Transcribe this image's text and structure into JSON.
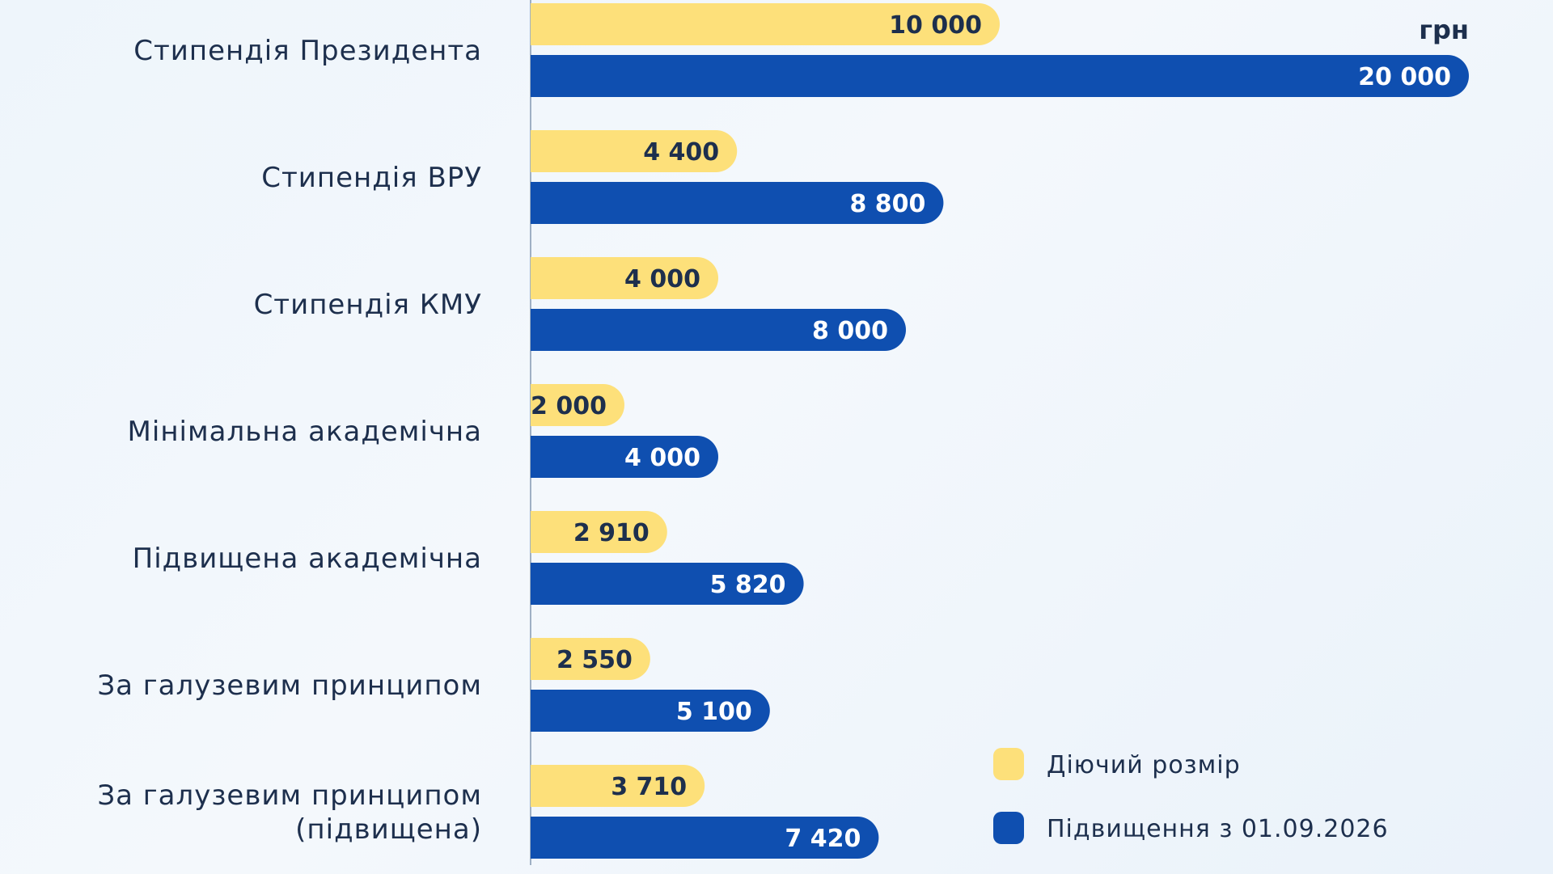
{
  "chart_data": {
    "type": "bar",
    "orientation": "horizontal",
    "unit": "грн",
    "categories": [
      [
        "Стипендія Президента"
      ],
      [
        "Стипендія ВРУ"
      ],
      [
        "Стипендія КМУ"
      ],
      [
        "Мінімальна академічна"
      ],
      [
        "Підвищена академічна"
      ],
      [
        "За галузевим принципом"
      ],
      [
        "За галузевим принципом",
        "(підвищена)"
      ]
    ],
    "series": [
      {
        "name": "Діючий розмір",
        "color": "#fde07a",
        "text_color": "#1d2f4d",
        "values": [
          10000,
          4400,
          4000,
          2000,
          2910,
          2550,
          3710
        ],
        "labels": [
          "10 000",
          "4 400",
          "4 000",
          "2 000",
          "2 910",
          "2 550",
          "3 710"
        ]
      },
      {
        "name": "Підвищення з 01.09.2026",
        "color": "#0f4fb0",
        "text_color": "#ffffff",
        "values": [
          20000,
          8800,
          8000,
          4000,
          5820,
          5100,
          7420
        ],
        "labels": [
          "20 000",
          "8 800",
          "8 000",
          "4 000",
          "5 820",
          "5 100",
          "7 420"
        ]
      }
    ],
    "xlim": [
      0,
      20000
    ],
    "grid": false,
    "legend_position": "bottom-right"
  }
}
